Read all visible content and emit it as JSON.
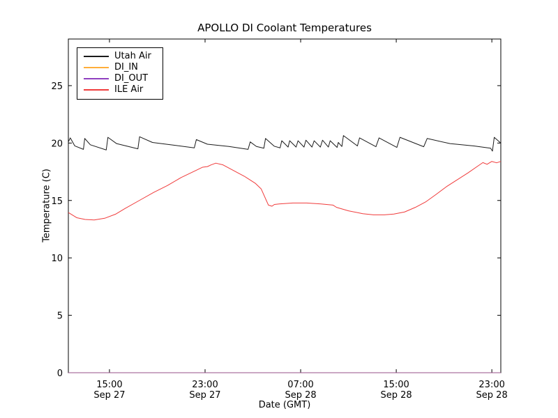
{
  "chart_data": {
    "type": "line",
    "title": "APOLLO DI Coolant Temperatures",
    "xlabel": "Date (GMT)",
    "ylabel": "Temperature (C)",
    "x_unit": "hours since Sep 27 00:00 GMT",
    "xlim": [
      11.56,
      47.75
    ],
    "ylim": [
      0,
      29.06
    ],
    "grid": false,
    "legend_position": "upper left",
    "yticks": [
      0,
      5,
      10,
      15,
      20,
      25
    ],
    "xticks": [
      {
        "t": 15,
        "line1": "15:00",
        "line2": "Sep 27"
      },
      {
        "t": 23,
        "line1": "23:00",
        "line2": "Sep 27"
      },
      {
        "t": 31,
        "line1": "07:00",
        "line2": "Sep 28"
      },
      {
        "t": 39,
        "line1": "15:00",
        "line2": "Sep 28"
      },
      {
        "t": 47,
        "line1": "23:00",
        "line2": "Sep 28"
      }
    ],
    "series": [
      {
        "name": "Utah Air",
        "color": "#1a1a1a",
        "opacity": 1,
        "points": [
          [
            11.56,
            20.1
          ],
          [
            11.72,
            20.45
          ],
          [
            12.1,
            19.75
          ],
          [
            12.82,
            19.45
          ],
          [
            12.93,
            20.4
          ],
          [
            13.4,
            19.85
          ],
          [
            14.73,
            19.4
          ],
          [
            14.87,
            20.5
          ],
          [
            15.6,
            19.95
          ],
          [
            17.38,
            19.5
          ],
          [
            17.52,
            20.55
          ],
          [
            18.6,
            20.05
          ],
          [
            20.5,
            19.8
          ],
          [
            22.1,
            19.58
          ],
          [
            22.27,
            20.3
          ],
          [
            23.2,
            19.9
          ],
          [
            25.0,
            19.7
          ],
          [
            26.6,
            19.45
          ],
          [
            26.78,
            20.1
          ],
          [
            27.3,
            19.7
          ],
          [
            27.92,
            19.55
          ],
          [
            28.06,
            20.4
          ],
          [
            28.8,
            19.72
          ],
          [
            29.28,
            19.58
          ],
          [
            29.42,
            20.2
          ],
          [
            29.95,
            19.65
          ],
          [
            30.08,
            20.2
          ],
          [
            30.62,
            19.65
          ],
          [
            30.78,
            20.2
          ],
          [
            31.28,
            19.65
          ],
          [
            31.44,
            20.25
          ],
          [
            31.95,
            19.65
          ],
          [
            32.13,
            20.2
          ],
          [
            32.65,
            19.65
          ],
          [
            32.83,
            20.25
          ],
          [
            33.32,
            19.65
          ],
          [
            33.47,
            20.2
          ],
          [
            34.05,
            19.62
          ],
          [
            34.15,
            20.05
          ],
          [
            34.45,
            19.7
          ],
          [
            34.58,
            20.65
          ],
          [
            35.75,
            19.75
          ],
          [
            35.93,
            20.45
          ],
          [
            37.3,
            19.68
          ],
          [
            37.56,
            20.45
          ],
          [
            39.05,
            19.62
          ],
          [
            39.31,
            20.5
          ],
          [
            41.3,
            19.68
          ],
          [
            41.59,
            20.4
          ],
          [
            43.5,
            19.95
          ],
          [
            45.5,
            19.75
          ],
          [
            46.9,
            19.55
          ],
          [
            47.05,
            19.3
          ],
          [
            47.2,
            20.5
          ],
          [
            47.75,
            20.0
          ]
        ]
      },
      {
        "name": "DI_IN",
        "color": "#ffae3a",
        "opacity": 0.65,
        "points": [
          [
            11.56,
            0
          ],
          [
            47.75,
            0
          ]
        ]
      },
      {
        "name": "DI_OUT",
        "color": "#8f3fbf",
        "opacity": 0.65,
        "points": [
          [
            11.56,
            0
          ],
          [
            47.75,
            0
          ]
        ]
      },
      {
        "name": "ILE Air",
        "color": "#f03b3b",
        "opacity": 1,
        "points": [
          [
            11.56,
            13.95
          ],
          [
            12.26,
            13.5
          ],
          [
            12.96,
            13.35
          ],
          [
            13.72,
            13.3
          ],
          [
            14.6,
            13.45
          ],
          [
            15.5,
            13.8
          ],
          [
            16.3,
            14.3
          ],
          [
            17.5,
            15.0
          ],
          [
            18.7,
            15.7
          ],
          [
            19.85,
            16.3
          ],
          [
            21.0,
            17.0
          ],
          [
            22.2,
            17.6
          ],
          [
            22.8,
            17.9
          ],
          [
            23.2,
            17.95
          ],
          [
            23.5,
            18.1
          ],
          [
            23.9,
            18.25
          ],
          [
            24.5,
            18.1
          ],
          [
            25.4,
            17.6
          ],
          [
            26.3,
            17.1
          ],
          [
            27.2,
            16.5
          ],
          [
            27.7,
            16.0
          ],
          [
            28.0,
            15.3
          ],
          [
            28.3,
            14.6
          ],
          [
            28.6,
            14.5
          ],
          [
            28.8,
            14.65
          ],
          [
            29.2,
            14.7
          ],
          [
            30.35,
            14.78
          ],
          [
            31.5,
            14.78
          ],
          [
            32.7,
            14.7
          ],
          [
            33.7,
            14.6
          ],
          [
            34.0,
            14.4
          ],
          [
            35.0,
            14.1
          ],
          [
            36.2,
            13.85
          ],
          [
            37.1,
            13.75
          ],
          [
            38.0,
            13.75
          ],
          [
            38.8,
            13.82
          ],
          [
            39.7,
            14.0
          ],
          [
            40.6,
            14.4
          ],
          [
            41.5,
            14.9
          ],
          [
            42.3,
            15.5
          ],
          [
            43.2,
            16.2
          ],
          [
            44.1,
            16.8
          ],
          [
            45.0,
            17.4
          ],
          [
            45.9,
            18.05
          ],
          [
            46.25,
            18.3
          ],
          [
            46.6,
            18.15
          ],
          [
            47.0,
            18.4
          ],
          [
            47.4,
            18.28
          ],
          [
            47.75,
            18.4
          ]
        ]
      }
    ]
  }
}
